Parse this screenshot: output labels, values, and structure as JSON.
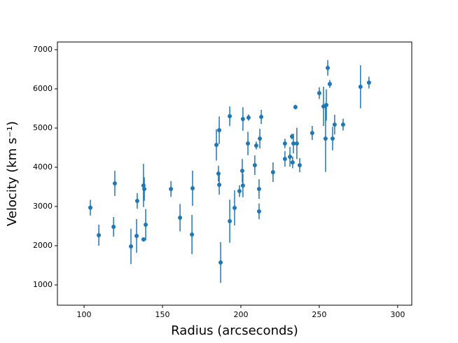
{
  "chart_data": {
    "type": "scatter",
    "xlabel": "Radius (arcseconds)",
    "ylabel": "Velocity (km s⁻¹)",
    "color": "#1f77b4",
    "x": [
      104,
      109.4,
      118.8,
      119.6,
      129.9,
      133.9,
      133.5,
      137.9,
      138.4,
      137.9,
      139.3,
      155.4,
      161.2,
      169.2,
      168.8,
      184.4,
      186.2,
      185.7,
      186.2,
      187.1,
      192.9,
      192.9,
      196,
      199.1,
      200.9,
      201.3,
      201.3,
      204.9,
      204.5,
      208.9,
      209.8,
      211.6,
      211.6,
      212.1,
      213,
      220.5,
      228.1,
      228.1,
      231.3,
      232.6,
      233,
      234.8,
      233.5,
      235.7,
      237.5,
      245.5,
      250,
      252.7,
      254.5,
      254,
      255.4,
      256.7,
      258.5,
      259.8,
      265.2,
      276.3,
      281.7
    ],
    "values": [
      2970,
      2268,
      2482,
      3590,
      1982,
      3143,
      2250,
      3536,
      3446,
      2160,
      2536,
      3446,
      2714,
      3464,
      2286,
      4571,
      4946,
      3839,
      3554,
      1571,
      2625,
      5304,
      2964,
      3393,
      3911,
      3536,
      5232,
      5268,
      4607,
      4054,
      4554,
      3446,
      2875,
      4732,
      5286,
      3875,
      4214,
      4607,
      4268,
      4786,
      4125,
      5536,
      4607,
      4607,
      4054,
      4875,
      5893,
      5554,
      5589,
      4732,
      6536,
      6125,
      4732,
      5089,
      5089,
      6054,
      6161
    ],
    "errors": [
      200,
      270,
      250,
      320,
      450,
      200,
      430,
      550,
      300,
      50,
      400,
      200,
      350,
      450,
      500,
      400,
      350,
      200,
      250,
      520,
      550,
      250,
      450,
      150,
      300,
      300,
      300,
      80,
      300,
      250,
      100,
      250,
      200,
      250,
      180,
      250,
      200,
      120,
      250,
      70,
      150,
      60,
      250,
      400,
      180,
      180,
      150,
      500,
      400,
      850,
      200,
      100,
      300,
      250,
      150,
      550,
      150
    ],
    "xlim": [
      83,
      309
    ],
    "xticks": [
      100,
      150,
      200,
      250,
      300
    ],
    "ylim": [
      482,
      7196
    ],
    "yticks": [
      1000,
      2000,
      3000,
      4000,
      5000,
      6000,
      7000
    ]
  }
}
